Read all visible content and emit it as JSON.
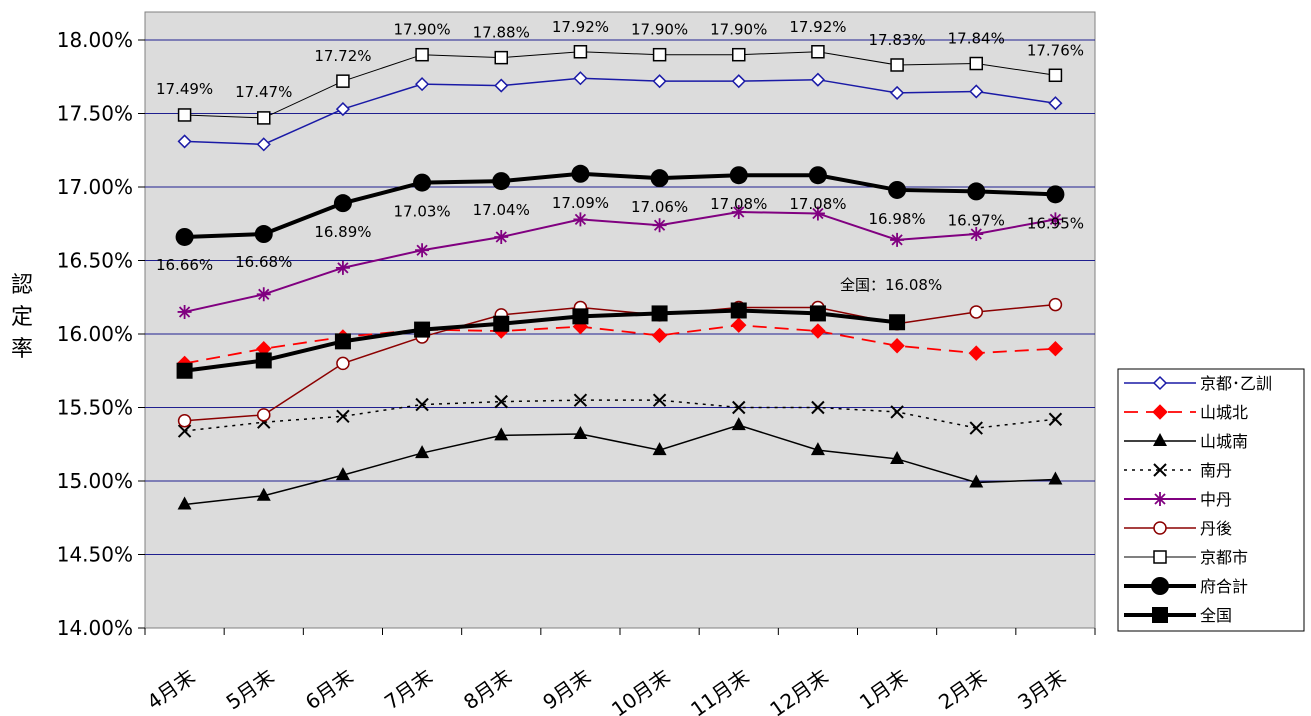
{
  "chart_data": {
    "type": "line",
    "ylabel": "認定率",
    "ylim": [
      14.0,
      18.2
    ],
    "yticks": [
      "14.00%",
      "14.50%",
      "15.00%",
      "15.50%",
      "16.00%",
      "16.50%",
      "17.00%",
      "17.50%",
      "18.00%"
    ],
    "categories": [
      "4月末",
      "5月末",
      "6月末",
      "7月末",
      "8月末",
      "9月末",
      "10月末",
      "11月末",
      "12月末",
      "1月末",
      "2月末",
      "3月末"
    ],
    "grid": true,
    "legend_position": "right",
    "annotation": "全国：16.08%",
    "series": [
      {
        "name": "京都･乙訓",
        "values": [
          17.31,
          17.29,
          17.53,
          17.7,
          17.69,
          17.74,
          17.72,
          17.72,
          17.73,
          17.64,
          17.65,
          17.57
        ],
        "color": "#1a1aa6",
        "marker": "diamond-open",
        "dash": "solid",
        "width": 1.5
      },
      {
        "name": "山城北",
        "values": [
          15.8,
          15.9,
          15.98,
          16.03,
          16.02,
          16.05,
          15.99,
          16.06,
          16.02,
          15.92,
          15.87,
          15.9
        ],
        "color": "#ff0000",
        "marker": "diamond-filled",
        "dash": "long",
        "width": 1.8
      },
      {
        "name": "山城南",
        "values": [
          14.84,
          14.9,
          15.04,
          15.19,
          15.31,
          15.32,
          15.21,
          15.38,
          15.21,
          15.15,
          14.99,
          15.01
        ],
        "color": "#000000",
        "marker": "triangle",
        "dash": "solid",
        "width": 1.5
      },
      {
        "name": "南丹",
        "values": [
          15.34,
          15.4,
          15.44,
          15.52,
          15.54,
          15.55,
          15.55,
          15.5,
          15.5,
          15.47,
          15.36,
          15.42
        ],
        "color": "#000000",
        "marker": "x",
        "dash": "dot",
        "width": 1.5
      },
      {
        "name": "中丹",
        "values": [
          16.15,
          16.27,
          16.45,
          16.57,
          16.66,
          16.78,
          16.74,
          16.83,
          16.82,
          16.64,
          16.68,
          16.78
        ],
        "color": "#800080",
        "marker": "star",
        "dash": "solid",
        "width": 2
      },
      {
        "name": "丹後",
        "values": [
          15.41,
          15.45,
          15.8,
          15.98,
          16.13,
          16.18,
          16.13,
          16.18,
          16.18,
          16.07,
          16.15,
          16.2
        ],
        "color": "#8b0000",
        "marker": "circle-open",
        "dash": "solid",
        "width": 1.5
      },
      {
        "name": "京都市",
        "values": [
          17.49,
          17.47,
          17.72,
          17.9,
          17.88,
          17.92,
          17.9,
          17.9,
          17.92,
          17.83,
          17.84,
          17.76
        ],
        "labels": [
          "17.49%",
          "17.47%",
          "17.72%",
          "17.90%",
          "17.88%",
          "17.92%",
          "17.90%",
          "17.90%",
          "17.92%",
          "17.83%",
          "17.84%",
          "17.76%"
        ],
        "color": "#000000",
        "marker": "square-open",
        "dash": "solid",
        "width": 1
      },
      {
        "name": "府合計",
        "values": [
          16.66,
          16.68,
          16.89,
          17.03,
          17.04,
          17.09,
          17.06,
          17.08,
          17.08,
          16.98,
          16.97,
          16.95
        ],
        "labels": [
          "16.66%",
          "16.68%",
          "16.89%",
          "17.03%",
          "17.04%",
          "17.09%",
          "17.06%",
          "17.08%",
          "17.08%",
          "16.98%",
          "16.97%",
          "16.95%"
        ],
        "color": "#000000",
        "marker": "circle-filled",
        "dash": "solid",
        "width": 4
      },
      {
        "name": "全国",
        "values": [
          15.75,
          15.82,
          15.95,
          16.03,
          16.07,
          16.12,
          16.14,
          16.16,
          16.14,
          16.08,
          null,
          null
        ],
        "color": "#000000",
        "marker": "square-filled",
        "dash": "solid",
        "width": 4
      }
    ]
  }
}
